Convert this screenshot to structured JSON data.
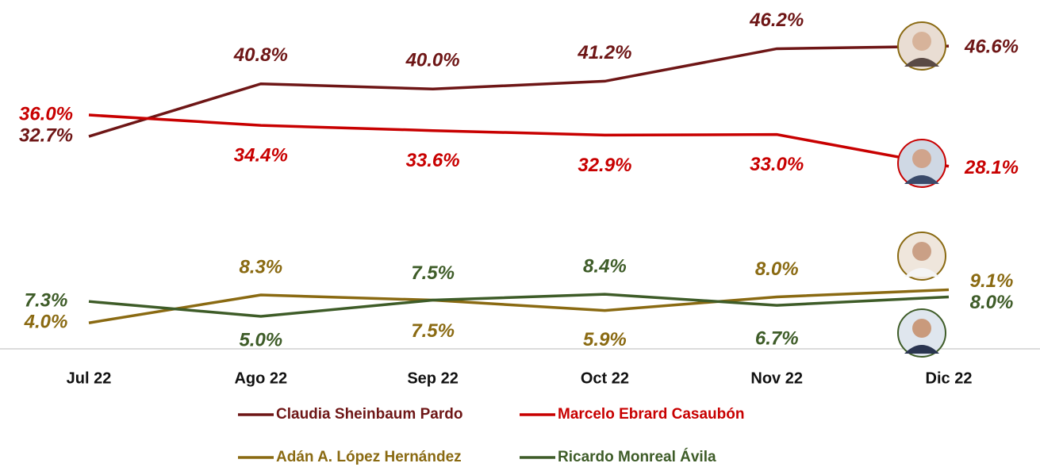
{
  "chart_data": {
    "type": "line",
    "categories": [
      "Jul 22",
      "Ago 22",
      "Sep 22",
      "Oct 22",
      "Nov 22",
      "Dic 22"
    ],
    "ylim": [
      0,
      53.7
    ],
    "series": [
      {
        "name": "Claudia Sheinbaum Pardo",
        "color": "#6e1616",
        "values": [
          32.7,
          40.8,
          40.0,
          41.2,
          46.2,
          46.6
        ],
        "value_labels": [
          "32.7%",
          "40.8%",
          "40.0%",
          "41.2%",
          "46.2%",
          "46.6%"
        ]
      },
      {
        "name": "Marcelo Ebrard Casaubón",
        "color": "#c80000",
        "values": [
          36.0,
          34.4,
          33.6,
          32.9,
          33.0,
          28.1
        ],
        "value_labels": [
          "36.0%",
          "34.4%",
          "33.6%",
          "32.9%",
          "33.0%",
          "28.1%"
        ]
      },
      {
        "name": "Adán A. López Hernández",
        "color": "#8a6a12",
        "values": [
          4.0,
          8.3,
          7.5,
          5.9,
          8.0,
          9.1
        ],
        "value_labels": [
          "4.0%",
          "8.3%",
          "7.5%",
          "5.9%",
          "8.0%",
          "9.1%"
        ]
      },
      {
        "name": "Ricardo Monreal Ávila",
        "color": "#3e5c28",
        "values": [
          7.3,
          5.0,
          7.5,
          8.4,
          6.7,
          8.0
        ],
        "value_labels": [
          "7.3%",
          "5.0%",
          "7.5%",
          "8.4%",
          "6.7%",
          "8.0%"
        ]
      }
    ]
  }
}
